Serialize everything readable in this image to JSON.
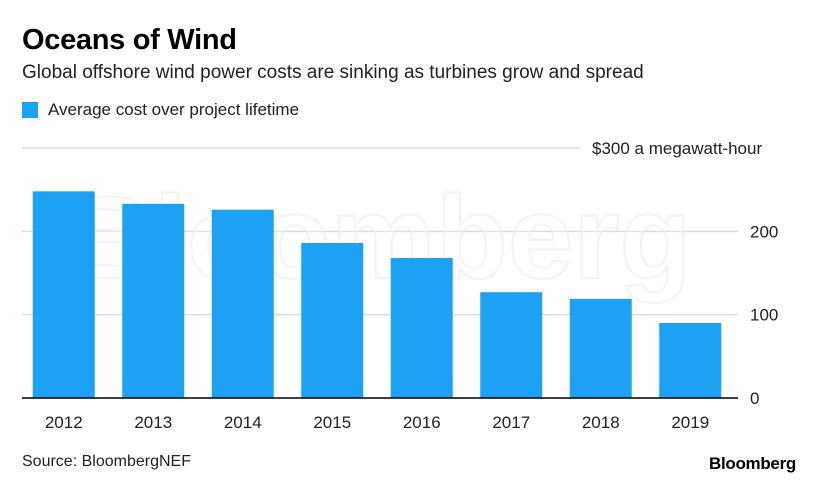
{
  "title": "Oceans of Wind",
  "subtitle": "Global offshore wind power costs are sinking as turbines grow and spread",
  "source": "Source: BloombergNEF",
  "brand": "Bloomberg",
  "watermark": "Bloomberg",
  "colors": {
    "bar": "#1da1f2",
    "grid": "#dedede",
    "axis": "#000000",
    "text": "#222222"
  },
  "chart_data": {
    "type": "bar",
    "title": "Oceans of Wind",
    "subtitle": "Global offshore wind power costs are sinking as turbines grow and spread",
    "xlabel": "",
    "ylabel": "",
    "categories": [
      "2012",
      "2013",
      "2014",
      "2015",
      "2016",
      "2017",
      "2018",
      "2019"
    ],
    "series": [
      {
        "name": "Average cost over project lifetime",
        "values": [
          248,
          233,
          226,
          186,
          168,
          127,
          119,
          90
        ]
      }
    ],
    "ylim": [
      0,
      300
    ],
    "yticks": [
      0,
      100,
      200,
      300
    ],
    "ytick_labels": [
      "0",
      "100",
      "200",
      "$300 a megawatt-hour"
    ],
    "legend_position": "top-left",
    "grid": true
  }
}
